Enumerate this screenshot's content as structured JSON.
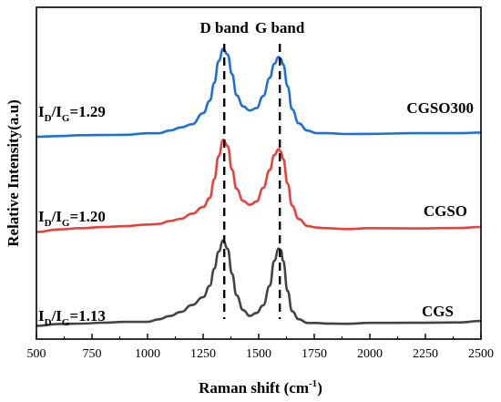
{
  "chart_data": {
    "type": "line",
    "title": "",
    "xlabel": "Raman shift (cm",
    "xlabel_sup": "-1",
    "xlabel_end": ")",
    "ylabel": "Relative Intensity(a.u)",
    "xlim": [
      500,
      2500
    ],
    "xticks": [
      500,
      750,
      1000,
      1250,
      1500,
      1750,
      2000,
      2250,
      2500
    ],
    "y_tick_labels": false,
    "grid": false,
    "legend": "none",
    "x": [
      500,
      600,
      700,
      800,
      900,
      1000,
      1050,
      1100,
      1150,
      1200,
      1250,
      1280,
      1300,
      1320,
      1340,
      1360,
      1380,
      1400,
      1430,
      1460,
      1490,
      1520,
      1550,
      1570,
      1590,
      1600,
      1610,
      1630,
      1650,
      1680,
      1720,
      1760,
      1800,
      1900,
      2000,
      2200,
      2400,
      2500
    ],
    "series": [
      {
        "name": "CGSO300",
        "color": "#1f6fd8",
        "label": "CGSO300",
        "ratio_prefix": "I",
        "ratio_sub_d": "D",
        "ratio_slash": "/I",
        "ratio_sub_g": "G",
        "ratio_value": "=1.29",
        "values": [
          0.0,
          0.01,
          0.01,
          0.02,
          0.02,
          0.03,
          0.04,
          0.06,
          0.09,
          0.13,
          0.23,
          0.36,
          0.54,
          0.75,
          0.88,
          0.82,
          0.62,
          0.42,
          0.3,
          0.26,
          0.29,
          0.4,
          0.59,
          0.73,
          0.79,
          0.78,
          0.72,
          0.5,
          0.28,
          0.13,
          0.06,
          0.04,
          0.03,
          0.03,
          0.03,
          0.03,
          0.04,
          0.04
        ]
      },
      {
        "name": "CGSO",
        "color": "#e8413b",
        "label": "CGSO",
        "ratio_prefix": "I",
        "ratio_sub_d": "D",
        "ratio_slash": "/I",
        "ratio_sub_g": "G",
        "ratio_value": "=1.20",
        "values": [
          0.0,
          0.02,
          0.03,
          0.05,
          0.05,
          0.07,
          0.08,
          0.1,
          0.13,
          0.18,
          0.24,
          0.34,
          0.52,
          0.75,
          0.92,
          0.85,
          0.62,
          0.43,
          0.3,
          0.27,
          0.3,
          0.43,
          0.62,
          0.76,
          0.82,
          0.8,
          0.72,
          0.48,
          0.26,
          0.12,
          0.06,
          0.04,
          0.03,
          0.03,
          0.03,
          0.03,
          0.04,
          0.04
        ]
      },
      {
        "name": "CGS",
        "color": "#444444",
        "label": "CGS",
        "ratio_prefix": "I",
        "ratio_sub_d": "D",
        "ratio_slash": "/I",
        "ratio_sub_g": "G",
        "ratio_value": "=1.13",
        "values": [
          0.0,
          0.01,
          0.02,
          0.03,
          0.03,
          0.04,
          0.06,
          0.09,
          0.14,
          0.2,
          0.28,
          0.4,
          0.56,
          0.74,
          0.85,
          0.76,
          0.52,
          0.3,
          0.15,
          0.1,
          0.12,
          0.2,
          0.4,
          0.64,
          0.77,
          0.75,
          0.64,
          0.35,
          0.14,
          0.06,
          0.03,
          0.02,
          0.02,
          0.02,
          0.02,
          0.03,
          0.03,
          0.04
        ]
      }
    ],
    "reference_lines": [
      {
        "label": "D band",
        "x": 1345
      },
      {
        "label": "G band",
        "x": 1595
      }
    ]
  }
}
